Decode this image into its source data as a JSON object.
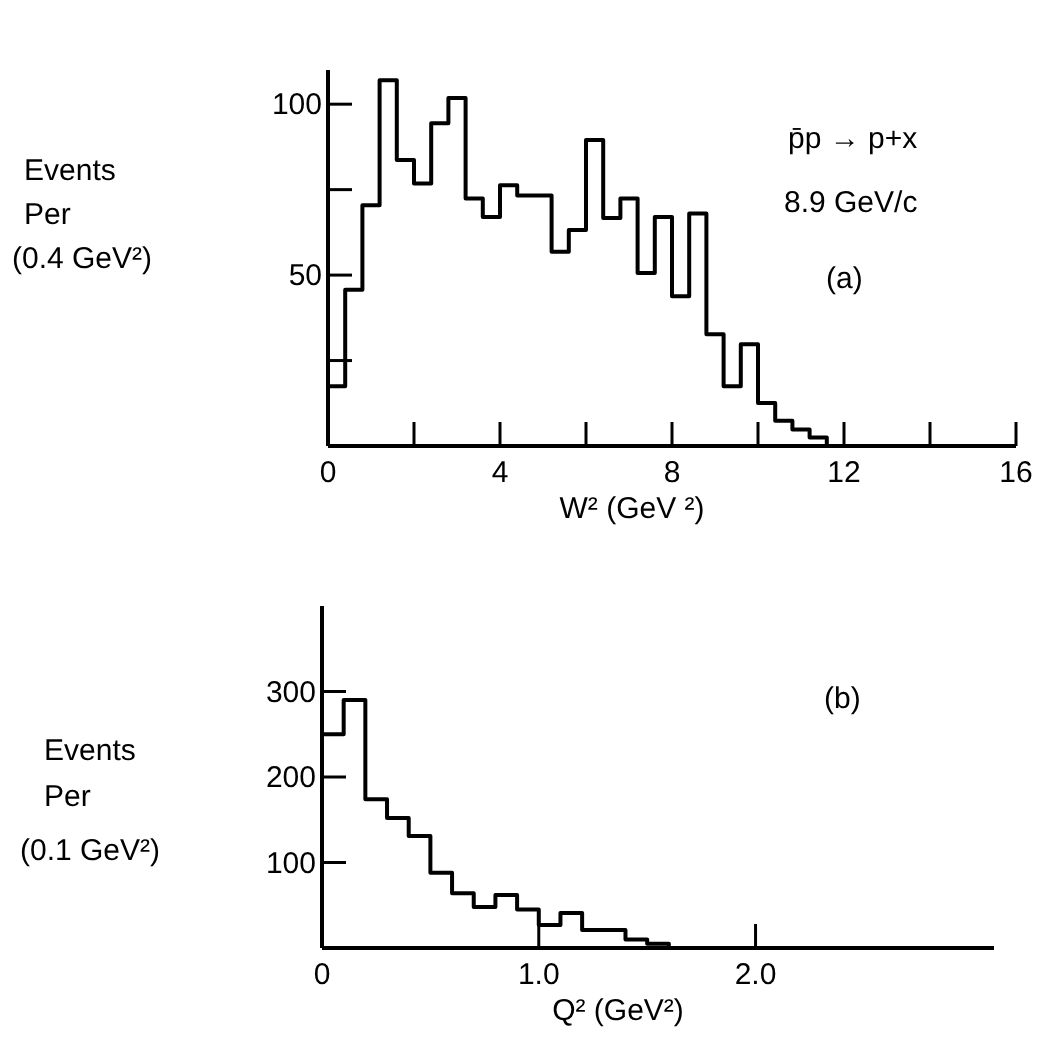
{
  "chart_data": [
    {
      "type": "histogram",
      "xlabel": "W² (GeV ²)",
      "ylabel": "Events\nPer\n(0.4 GeV²)",
      "annotations": [
        "p̄p → p+x",
        "8.9 GeV/c",
        "(a)"
      ],
      "bins": [
        0,
        0.4,
        0.8,
        1.2,
        1.6,
        2,
        2.4,
        2.8,
        3.2,
        3.6,
        4,
        4.4,
        4.8,
        5.2,
        5.6,
        6,
        6.4,
        6.8,
        7.2,
        7.6,
        8,
        8.4,
        8.8,
        9.2,
        9.6,
        10,
        10.4,
        10.8,
        11.2,
        11.6
      ],
      "values": [
        17.5,
        45.7,
        70.4,
        107,
        83.7,
        76.8,
        94.4,
        101.8,
        72.4,
        67,
        76.3,
        73.3,
        73.3,
        56.8,
        63.2,
        89.5,
        66.7,
        72.4,
        50.6,
        67,
        43.8,
        68,
        32.7,
        17.5,
        29.8,
        12.6,
        7.4,
        4.8,
        2.5
      ],
      "color": "#000000",
      "xlim": [
        0,
        16
      ],
      "xticks": [
        0,
        {
          "value": 2,
          "label": null
        },
        4,
        {
          "value": 6,
          "label": null
        },
        8,
        {
          "value": 10,
          "label": null
        },
        12,
        {
          "value": 14,
          "label": null
        },
        16
      ],
      "ylim": [
        0,
        110
      ],
      "yticks": [
        {
          "value": 25,
          "label": null
        },
        50,
        {
          "value": 75,
          "label": null
        },
        100
      ],
      "grid": false
    },
    {
      "type": "histogram",
      "xlabel": "Q² (GeV²)",
      "ylabel": "Events\nPer\n(0.1 GeV²)",
      "annotations": [
        "(b)"
      ],
      "bins": [
        0,
        0.1,
        0.2,
        0.3,
        0.4,
        0.5,
        0.6,
        0.7,
        0.8,
        0.9,
        1.0,
        1.1,
        1.2,
        1.3,
        1.4,
        1.5,
        1.6
      ],
      "values": [
        250,
        290,
        174,
        152,
        131,
        88,
        64,
        48,
        62,
        45,
        27,
        41,
        21,
        21,
        10,
        5
      ],
      "color": "#000000",
      "xlim": [
        0,
        3.1
      ],
      "xticks": [
        0,
        {
          "value": 1,
          "label": "1.0"
        },
        {
          "value": 2,
          "label": "2.0"
        }
      ],
      "ylim": [
        0,
        400
      ],
      "yticks": [
        100,
        200,
        300
      ],
      "grid": false
    }
  ]
}
